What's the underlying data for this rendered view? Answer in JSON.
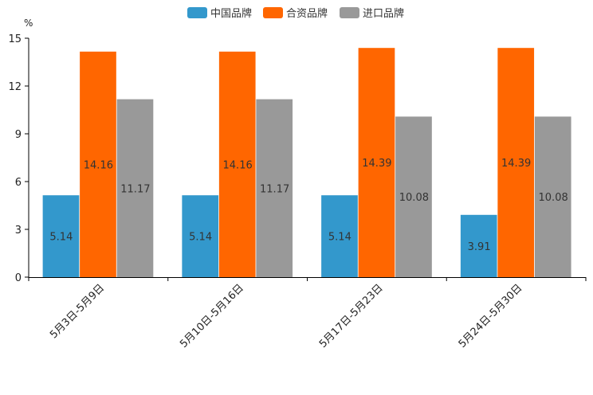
{
  "chart_data": {
    "type": "bar",
    "title": "",
    "ylabel": "%",
    "xlabel": "",
    "ylim": [
      0,
      15
    ],
    "yticks": [
      "0",
      "3",
      "6",
      "9",
      "12",
      "15"
    ],
    "categories": [
      "5月3日-5月9日",
      "5月10日-5月16日",
      "5月17日-5月23日",
      "5月24日-5月30日"
    ],
    "series": [
      {
        "name": "中国品牌",
        "color": "#3398cc",
        "values": [
          5.14,
          5.14,
          5.14,
          3.91
        ],
        "labels": [
          "5.14",
          "5.14",
          "5.14",
          "3.91"
        ]
      },
      {
        "name": "合资品牌",
        "color": "#ff6600",
        "values": [
          14.16,
          14.16,
          14.39,
          14.39
        ],
        "labels": [
          "14.16",
          "14.16",
          "14.39",
          "14.39"
        ]
      },
      {
        "name": "进口品牌",
        "color": "#999999",
        "values": [
          11.17,
          11.17,
          10.08,
          10.08
        ],
        "labels": [
          "11.17",
          "11.17",
          "10.08",
          "10.08"
        ]
      }
    ],
    "legend_position": "top-center",
    "grid": false
  }
}
